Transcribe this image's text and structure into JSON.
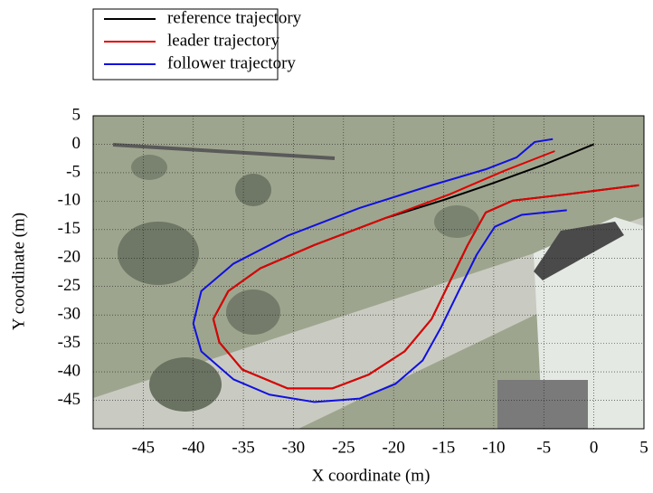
{
  "chart_data": {
    "type": "line",
    "xlabel": "X coordinate (m)",
    "ylabel": "Y coordinate (m)",
    "xlim": [
      -50,
      5
    ],
    "ylim": [
      -50,
      5
    ],
    "xticks": [
      -45,
      -40,
      -35,
      -30,
      -25,
      -20,
      -15,
      -10,
      -5,
      0,
      5
    ],
    "yticks": [
      5,
      0,
      -5,
      -10,
      -15,
      -20,
      -25,
      -30,
      -35,
      -40,
      -45
    ],
    "grid": true,
    "legend": "top-left",
    "series": [
      {
        "name": "reference trajectory",
        "color": "#000000",
        "x": [
          0,
          -5,
          -10,
          -15,
          -20.7,
          -27.9,
          -33.3,
          -36.5,
          -38,
          -37.4,
          -35.1,
          -30.6,
          -26.1,
          -22.5,
          -18.9,
          -16.2,
          -14.4,
          -12.6,
          -10.8,
          -8.1,
          -2.7,
          0.9,
          4.5
        ],
        "y": [
          0,
          -3.6,
          -6.8,
          -9.8,
          -12.9,
          -17.7,
          -21.8,
          -25.8,
          -30.7,
          -34.8,
          -39.6,
          -42.9,
          -42.9,
          -40.5,
          -36.4,
          -30.7,
          -24.2,
          -17.7,
          -12,
          -9.9,
          -8.8,
          -8,
          -7.2
        ]
      },
      {
        "name": "leader trajectory",
        "color": "#e00000",
        "x": [
          -3.9,
          -9,
          -14.4,
          -20.7,
          -27.9,
          -33.3,
          -36.5,
          -38,
          -37.4,
          -35.1,
          -30.6,
          -26.1,
          -22.5,
          -18.9,
          -16.2,
          -14.4,
          -12.6,
          -10.8,
          -8.1,
          -2.7,
          0.9,
          4.5
        ],
        "y": [
          -1.2,
          -4.7,
          -8.8,
          -12.9,
          -17.7,
          -21.8,
          -25.8,
          -30.7,
          -34.8,
          -39.6,
          -42.9,
          -42.9,
          -40.5,
          -36.4,
          -30.7,
          -24.2,
          -17.7,
          -12,
          -9.9,
          -8.8,
          -8,
          -7.2
        ]
      },
      {
        "name": "follower trajectory",
        "color": "#1010e0",
        "x": [
          -4.1,
          -5.9,
          -7.7,
          -10.8,
          -16.2,
          -23.4,
          -30.6,
          -36,
          -39.2,
          -40,
          -39.2,
          -36,
          -32.4,
          -27.9,
          -23.4,
          -19.8,
          -17.1,
          -15.3,
          -13.5,
          -11.7,
          -9.9,
          -7.2,
          -2.7
        ],
        "y": [
          0.9,
          0.4,
          -2.3,
          -4.4,
          -7.2,
          -11.2,
          -16.1,
          -21,
          -25.8,
          -31.5,
          -36.4,
          -41.3,
          -44,
          -45.3,
          -44.7,
          -42.1,
          -38,
          -32.3,
          -25.8,
          -19.4,
          -14.5,
          -12.4,
          -11.6
        ]
      }
    ]
  }
}
